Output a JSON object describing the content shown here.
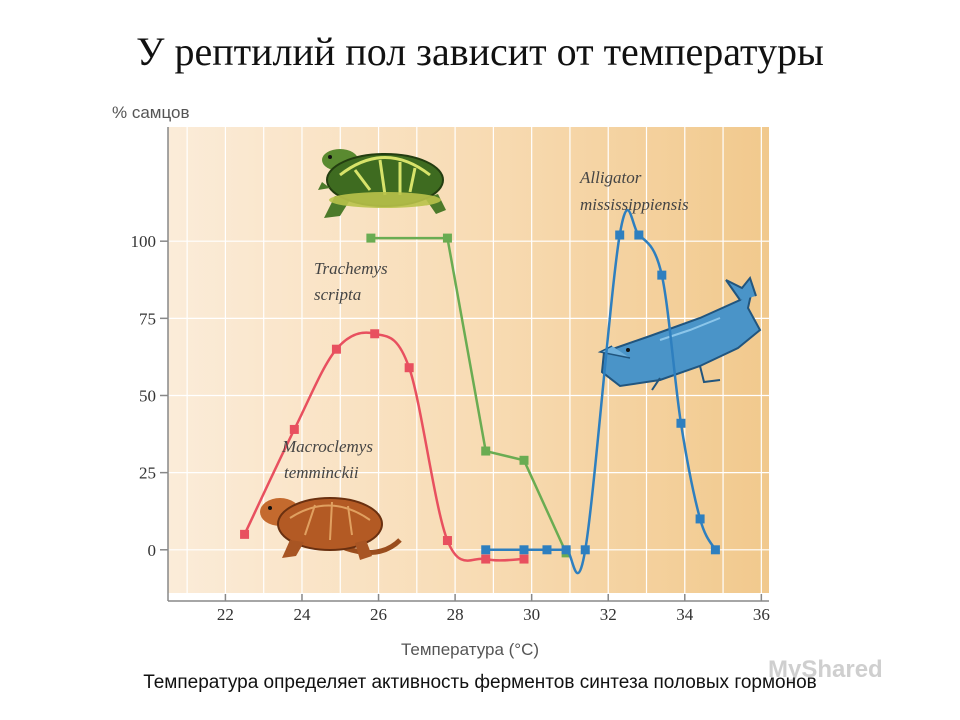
{
  "slide": {
    "title": "У рептилий пол зависит от температуры",
    "caption": "Температура определяет активность ферментов синтеза половых гормонов",
    "watermark": "MyShared"
  },
  "chart_data": {
    "type": "line",
    "title": "",
    "xlabel": "Температура (°C)",
    "ylabel": "% самцов",
    "xlim": [
      20.5,
      36.2
    ],
    "ylim": [
      -14,
      137
    ],
    "xticks": [
      22,
      24,
      26,
      28,
      30,
      32,
      34,
      36
    ],
    "yticks": [
      0,
      25,
      50,
      75,
      100
    ],
    "grid": true,
    "colors": {
      "background_left": "#fbecd9",
      "background_right": "#f1c98d",
      "grid": "#ffffff"
    },
    "series": [
      {
        "name": "Macroclemys temminckii",
        "label_lines": [
          "Macroclemys",
          "temminckii"
        ],
        "color": "#e8505f",
        "x": [
          22.5,
          23.8,
          24.9,
          25.9,
          26.8,
          27.8,
          28.8,
          29.8
        ],
        "y": [
          5,
          39,
          65,
          70,
          59,
          3,
          -3,
          -3
        ]
      },
      {
        "name": "Trachemys scripta",
        "label_lines": [
          "Trachemys",
          "scripta"
        ],
        "color": "#6aac52",
        "x": [
          25.8,
          27.8,
          28.8,
          29.8,
          30.9
        ],
        "y": [
          101,
          101,
          32,
          29,
          -1
        ]
      },
      {
        "name": "Alligator mississippiensis",
        "label_lines": [
          "Alligator",
          "mississippiensis"
        ],
        "color": "#2e7fbf",
        "x": [
          28.8,
          29.8,
          30.4,
          30.9,
          31.4,
          32.3,
          32.8,
          33.4,
          33.9,
          34.4,
          34.8
        ],
        "y": [
          0,
          0,
          0,
          0,
          0,
          102,
          102,
          89,
          41,
          10,
          0
        ]
      }
    ]
  },
  "illustrations": {
    "top_turtle": "turtle-illustration",
    "bottom_turtle": "snapping-turtle-illustration",
    "alligator": "alligator-illustration"
  }
}
